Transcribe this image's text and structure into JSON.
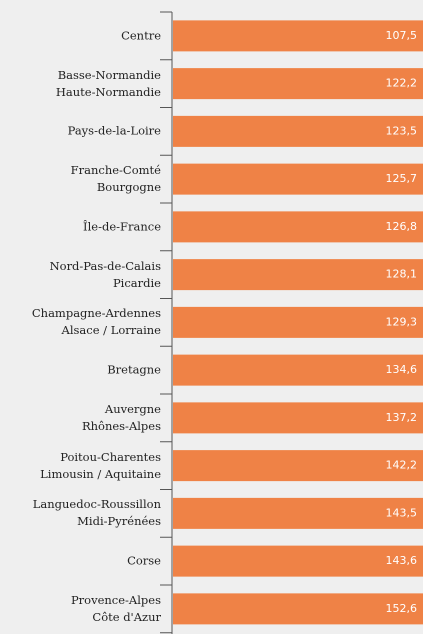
{
  "chart_data": {
    "type": "barh",
    "categories": [
      "Centre",
      "Basse-Normandie\nHaute-Normandie",
      "Pays-de-la-Loire",
      "Franche-Comté\nBourgogne",
      "Île-de-France",
      "Nord-Pas-de-Calais\nPicardie",
      "Champagne-Ardennes\nAlsace / Lorraine",
      "Bretagne",
      "Auvergne\nRhônes-Alpes",
      "Poitou-Charentes\nLimousin / Aquitaine",
      "Languedoc-Roussillon\nMidi-Pyrénées",
      "Corse",
      "Provence-Alpes\nCôte d'Azur"
    ],
    "values": [
      107.5,
      122.2,
      123.5,
      125.7,
      126.8,
      128.1,
      129.3,
      134.6,
      137.2,
      142.2,
      143.5,
      143.6,
      152.6
    ],
    "value_labels": [
      "107,5",
      "122,2",
      "123,5",
      "125,7",
      "126,8",
      "128,1",
      "129,3",
      "134,6",
      "137,2",
      "142,2",
      "143,5",
      "143,6",
      "152,6"
    ],
    "color": "#ef8246",
    "xlim": [
      0,
      100
    ]
  }
}
